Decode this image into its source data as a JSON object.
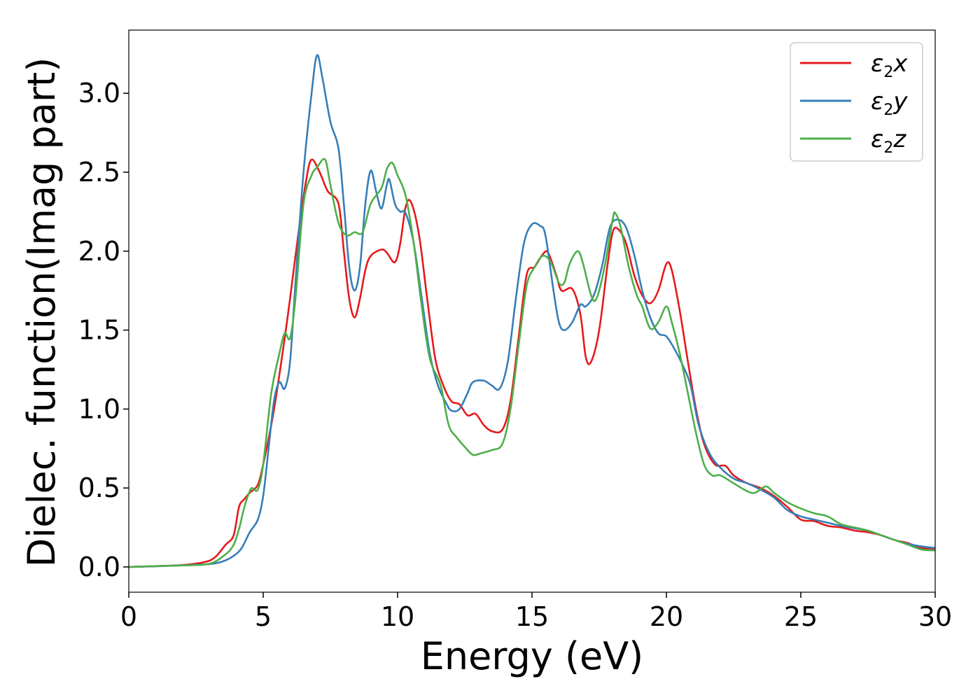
{
  "chart_data": {
    "type": "line",
    "title": "",
    "xlabel": "Energy (eV)",
    "ylabel": "Dielec. function(Imag part)",
    "xlim": [
      0,
      30
    ],
    "ylim": [
      -0.16,
      3.4
    ],
    "xticks": [
      0,
      5,
      10,
      15,
      20,
      25,
      30
    ],
    "yticks": [
      0.0,
      0.5,
      1.0,
      1.5,
      2.0,
      2.5,
      3.0
    ],
    "xtick_labels": [
      "0",
      "5",
      "10",
      "15",
      "20",
      "25",
      "30"
    ],
    "ytick_labels": [
      "0.0",
      "0.5",
      "1.0",
      "1.5",
      "2.0",
      "2.5",
      "3.0"
    ],
    "grid": false,
    "legend_position": "top-right",
    "series": [
      {
        "name": "ε2x",
        "legend": {
          "base": "ε",
          "sub": "2",
          "var": "x"
        },
        "color": "#e41a1c",
        "points": [
          [
            0,
            0
          ],
          [
            1,
            0.005
          ],
          [
            2,
            0.012
          ],
          [
            2.8,
            0.03
          ],
          [
            3.2,
            0.06
          ],
          [
            3.6,
            0.14
          ],
          [
            3.9,
            0.2
          ],
          [
            4.1,
            0.38
          ],
          [
            4.3,
            0.43
          ],
          [
            4.5,
            0.47
          ],
          [
            4.8,
            0.52
          ],
          [
            5.0,
            0.65
          ],
          [
            5.3,
            0.9
          ],
          [
            5.5,
            1.1
          ],
          [
            5.8,
            1.45
          ],
          [
            6.0,
            1.7
          ],
          [
            6.3,
            2.1
          ],
          [
            6.6,
            2.45
          ],
          [
            6.8,
            2.58
          ],
          [
            7.1,
            2.5
          ],
          [
            7.4,
            2.38
          ],
          [
            7.8,
            2.3
          ],
          [
            8.0,
            2.0
          ],
          [
            8.2,
            1.7
          ],
          [
            8.4,
            1.58
          ],
          [
            8.6,
            1.7
          ],
          [
            8.8,
            1.88
          ],
          [
            9.0,
            1.97
          ],
          [
            9.4,
            2.01
          ],
          [
            9.6,
            1.99
          ],
          [
            9.9,
            1.93
          ],
          [
            10.1,
            2.05
          ],
          [
            10.3,
            2.28
          ],
          [
            10.5,
            2.31
          ],
          [
            10.8,
            2.1
          ],
          [
            11.1,
            1.7
          ],
          [
            11.4,
            1.32
          ],
          [
            11.7,
            1.15
          ],
          [
            12.0,
            1.05
          ],
          [
            12.3,
            1.03
          ],
          [
            12.6,
            0.96
          ],
          [
            12.9,
            0.97
          ],
          [
            13.2,
            0.9
          ],
          [
            13.5,
            0.86
          ],
          [
            13.9,
            0.87
          ],
          [
            14.2,
            1.05
          ],
          [
            14.5,
            1.45
          ],
          [
            14.8,
            1.85
          ],
          [
            15.1,
            1.9
          ],
          [
            15.4,
            1.98
          ],
          [
            15.6,
            1.99
          ],
          [
            15.9,
            1.85
          ],
          [
            16.1,
            1.75
          ],
          [
            16.5,
            1.76
          ],
          [
            16.8,
            1.6
          ],
          [
            17.0,
            1.33
          ],
          [
            17.2,
            1.3
          ],
          [
            17.5,
            1.5
          ],
          [
            17.8,
            1.9
          ],
          [
            18.0,
            2.12
          ],
          [
            18.2,
            2.14
          ],
          [
            18.5,
            2.05
          ],
          [
            18.8,
            1.85
          ],
          [
            19.1,
            1.72
          ],
          [
            19.4,
            1.67
          ],
          [
            19.7,
            1.75
          ],
          [
            20.0,
            1.92
          ],
          [
            20.2,
            1.88
          ],
          [
            20.5,
            1.62
          ],
          [
            20.8,
            1.3
          ],
          [
            21.1,
            1.0
          ],
          [
            21.4,
            0.78
          ],
          [
            21.8,
            0.65
          ],
          [
            22.2,
            0.64
          ],
          [
            22.5,
            0.58
          ],
          [
            23.0,
            0.53
          ],
          [
            23.5,
            0.5
          ],
          [
            24.0,
            0.45
          ],
          [
            24.5,
            0.38
          ],
          [
            25.0,
            0.3
          ],
          [
            25.5,
            0.29
          ],
          [
            26.0,
            0.26
          ],
          [
            26.5,
            0.25
          ],
          [
            27.0,
            0.23
          ],
          [
            27.5,
            0.22
          ],
          [
            28.0,
            0.2
          ],
          [
            28.5,
            0.17
          ],
          [
            29.0,
            0.15
          ],
          [
            29.5,
            0.12
          ],
          [
            30.0,
            0.11
          ]
        ]
      },
      {
        "name": "ε2y",
        "legend": {
          "base": "ε",
          "sub": "2",
          "var": "y"
        },
        "color": "#377eb8",
        "points": [
          [
            0,
            0
          ],
          [
            1,
            0.004
          ],
          [
            2,
            0.01
          ],
          [
            3,
            0.018
          ],
          [
            3.5,
            0.035
          ],
          [
            3.9,
            0.07
          ],
          [
            4.2,
            0.12
          ],
          [
            4.5,
            0.22
          ],
          [
            4.8,
            0.3
          ],
          [
            5.0,
            0.45
          ],
          [
            5.2,
            0.75
          ],
          [
            5.4,
            1.05
          ],
          [
            5.6,
            1.17
          ],
          [
            5.8,
            1.13
          ],
          [
            6.0,
            1.3
          ],
          [
            6.2,
            1.8
          ],
          [
            6.5,
            2.5
          ],
          [
            6.8,
            3.0
          ],
          [
            7.0,
            3.24
          ],
          [
            7.2,
            3.1
          ],
          [
            7.5,
            2.82
          ],
          [
            7.8,
            2.65
          ],
          [
            8.0,
            2.3
          ],
          [
            8.2,
            1.9
          ],
          [
            8.4,
            1.75
          ],
          [
            8.6,
            1.9
          ],
          [
            8.8,
            2.3
          ],
          [
            9.0,
            2.51
          ],
          [
            9.2,
            2.38
          ],
          [
            9.4,
            2.27
          ],
          [
            9.6,
            2.42
          ],
          [
            9.7,
            2.45
          ],
          [
            9.9,
            2.3
          ],
          [
            10.1,
            2.25
          ],
          [
            10.3,
            2.24
          ],
          [
            10.6,
            2.05
          ],
          [
            10.9,
            1.7
          ],
          [
            11.2,
            1.35
          ],
          [
            11.5,
            1.15
          ],
          [
            11.8,
            1.04
          ],
          [
            12.0,
            0.99
          ],
          [
            12.3,
            1.0
          ],
          [
            12.6,
            1.1
          ],
          [
            12.8,
            1.17
          ],
          [
            13.2,
            1.18
          ],
          [
            13.5,
            1.15
          ],
          [
            13.8,
            1.13
          ],
          [
            14.1,
            1.3
          ],
          [
            14.4,
            1.7
          ],
          [
            14.7,
            2.05
          ],
          [
            15.0,
            2.17
          ],
          [
            15.3,
            2.16
          ],
          [
            15.5,
            2.1
          ],
          [
            15.8,
            1.75
          ],
          [
            16.0,
            1.55
          ],
          [
            16.2,
            1.5
          ],
          [
            16.5,
            1.55
          ],
          [
            16.8,
            1.66
          ],
          [
            17.0,
            1.65
          ],
          [
            17.3,
            1.72
          ],
          [
            17.6,
            1.9
          ],
          [
            17.9,
            2.15
          ],
          [
            18.2,
            2.2
          ],
          [
            18.5,
            2.15
          ],
          [
            18.8,
            1.98
          ],
          [
            19.1,
            1.75
          ],
          [
            19.4,
            1.58
          ],
          [
            19.7,
            1.48
          ],
          [
            20.0,
            1.46
          ],
          [
            20.3,
            1.38
          ],
          [
            20.6,
            1.28
          ],
          [
            20.9,
            1.15
          ],
          [
            21.2,
            0.9
          ],
          [
            21.6,
            0.72
          ],
          [
            22.0,
            0.63
          ],
          [
            22.5,
            0.56
          ],
          [
            23.0,
            0.53
          ],
          [
            23.5,
            0.49
          ],
          [
            24.0,
            0.44
          ],
          [
            24.5,
            0.36
          ],
          [
            25.0,
            0.32
          ],
          [
            25.5,
            0.3
          ],
          [
            26.0,
            0.28
          ],
          [
            26.5,
            0.26
          ],
          [
            27.0,
            0.245
          ],
          [
            27.5,
            0.23
          ],
          [
            28.0,
            0.2
          ],
          [
            28.5,
            0.17
          ],
          [
            29.0,
            0.145
          ],
          [
            29.5,
            0.13
          ],
          [
            30.0,
            0.12
          ]
        ]
      },
      {
        "name": "ε2z",
        "legend": {
          "base": "ε",
          "sub": "2",
          "var": "z"
        },
        "color": "#4daf4a",
        "points": [
          [
            0,
            0
          ],
          [
            1,
            0.005
          ],
          [
            2,
            0.01
          ],
          [
            3,
            0.02
          ],
          [
            3.6,
            0.08
          ],
          [
            3.9,
            0.14
          ],
          [
            4.1,
            0.24
          ],
          [
            4.3,
            0.38
          ],
          [
            4.5,
            0.48
          ],
          [
            4.6,
            0.5
          ],
          [
            4.8,
            0.49
          ],
          [
            5.0,
            0.65
          ],
          [
            5.3,
            1.1
          ],
          [
            5.6,
            1.35
          ],
          [
            5.8,
            1.48
          ],
          [
            6.0,
            1.45
          ],
          [
            6.2,
            1.7
          ],
          [
            6.5,
            2.3
          ],
          [
            6.8,
            2.48
          ],
          [
            7.0,
            2.53
          ],
          [
            7.3,
            2.58
          ],
          [
            7.5,
            2.42
          ],
          [
            7.8,
            2.18
          ],
          [
            8.1,
            2.1
          ],
          [
            8.4,
            2.12
          ],
          [
            8.7,
            2.12
          ],
          [
            9.0,
            2.3
          ],
          [
            9.4,
            2.4
          ],
          [
            9.6,
            2.52
          ],
          [
            9.8,
            2.56
          ],
          [
            10.0,
            2.48
          ],
          [
            10.3,
            2.35
          ],
          [
            10.6,
            2.05
          ],
          [
            10.9,
            1.65
          ],
          [
            11.2,
            1.32
          ],
          [
            11.6,
            1.15
          ],
          [
            11.9,
            0.9
          ],
          [
            12.2,
            0.82
          ],
          [
            12.5,
            0.76
          ],
          [
            12.8,
            0.71
          ],
          [
            13.1,
            0.72
          ],
          [
            13.5,
            0.74
          ],
          [
            13.9,
            0.78
          ],
          [
            14.2,
            1.0
          ],
          [
            14.5,
            1.4
          ],
          [
            14.8,
            1.78
          ],
          [
            15.1,
            1.9
          ],
          [
            15.4,
            1.97
          ],
          [
            15.7,
            1.93
          ],
          [
            16.0,
            1.8
          ],
          [
            16.2,
            1.8
          ],
          [
            16.4,
            1.92
          ],
          [
            16.7,
            2.0
          ],
          [
            16.9,
            1.92
          ],
          [
            17.2,
            1.72
          ],
          [
            17.4,
            1.7
          ],
          [
            17.7,
            1.9
          ],
          [
            18.0,
            2.2
          ],
          [
            18.1,
            2.24
          ],
          [
            18.3,
            2.15
          ],
          [
            18.6,
            1.9
          ],
          [
            18.9,
            1.72
          ],
          [
            19.1,
            1.65
          ],
          [
            19.4,
            1.51
          ],
          [
            19.7,
            1.55
          ],
          [
            20.0,
            1.65
          ],
          [
            20.2,
            1.55
          ],
          [
            20.5,
            1.35
          ],
          [
            20.8,
            1.1
          ],
          [
            21.1,
            0.85
          ],
          [
            21.4,
            0.65
          ],
          [
            21.7,
            0.58
          ],
          [
            22.0,
            0.58
          ],
          [
            22.5,
            0.53
          ],
          [
            23.0,
            0.48
          ],
          [
            23.3,
            0.47
          ],
          [
            23.7,
            0.51
          ],
          [
            24.0,
            0.47
          ],
          [
            24.5,
            0.41
          ],
          [
            25.0,
            0.37
          ],
          [
            25.5,
            0.34
          ],
          [
            26.0,
            0.32
          ],
          [
            26.5,
            0.27
          ],
          [
            27.0,
            0.25
          ],
          [
            27.5,
            0.23
          ],
          [
            28.0,
            0.2
          ],
          [
            28.5,
            0.17
          ],
          [
            29.0,
            0.14
          ],
          [
            29.5,
            0.11
          ],
          [
            30.0,
            0.105
          ]
        ]
      }
    ]
  }
}
